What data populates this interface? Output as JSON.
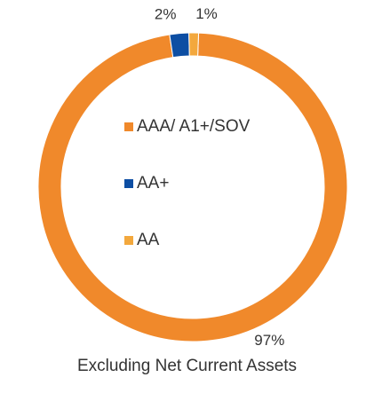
{
  "chart_data": {
    "type": "pie",
    "variant": "donut",
    "categories": [
      "AAA/ A1+/SOV",
      "AA+",
      "AA"
    ],
    "values": [
      97,
      2,
      1
    ],
    "labels": [
      "97%",
      "2%",
      "1%"
    ],
    "colors": [
      "#f0892b",
      "#0d4ea3",
      "#f3a83d"
    ],
    "legend_position": "center",
    "caption": "Excluding Net Current Assets"
  }
}
